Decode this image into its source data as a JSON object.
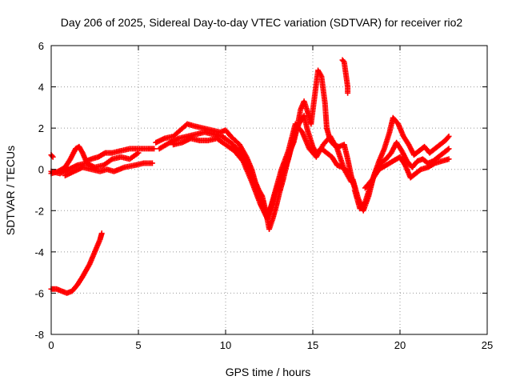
{
  "chart_data": {
    "type": "scatter",
    "title": "Day 206 of 2025, Sidereal Day-to-day VTEC variation (SDTVAR) for receiver rio2",
    "xlabel": "GPS time / hours",
    "ylabel": "SDTVAR / TECUs",
    "xlim": [
      0,
      25
    ],
    "ylim": [
      -8,
      6
    ],
    "xticks": [
      "0",
      "5",
      "10",
      "15",
      "20",
      "25"
    ],
    "yticks": [
      "-8",
      "-6",
      "-4",
      "-2",
      "0",
      "2",
      "4",
      "6"
    ],
    "grid": true,
    "marker": "+",
    "color": "#ff0000",
    "series": [
      {
        "name": "upper-track",
        "points": [
          [
            0.0,
            -0.2
          ],
          [
            0.4,
            -0.1
          ],
          [
            0.8,
            0.1
          ],
          [
            1.1,
            0.5
          ],
          [
            1.4,
            1.0
          ],
          [
            1.6,
            1.1
          ],
          [
            1.8,
            0.8
          ],
          [
            2.0,
            0.4
          ],
          [
            2.3,
            0.5
          ],
          [
            2.7,
            0.6
          ],
          [
            3.1,
            0.8
          ],
          [
            3.5,
            0.8
          ],
          [
            4.0,
            0.9
          ],
          [
            4.5,
            1.0
          ],
          [
            5.0,
            1.0
          ],
          [
            5.5,
            1.0
          ],
          [
            5.9,
            1.0
          ]
        ]
      },
      {
        "name": "middle-track",
        "points": [
          [
            0.0,
            -0.1
          ],
          [
            0.5,
            -0.2
          ],
          [
            1.0,
            0.0
          ],
          [
            1.5,
            0.2
          ],
          [
            2.0,
            0.3
          ],
          [
            2.5,
            0.1
          ],
          [
            3.0,
            0.2
          ],
          [
            3.5,
            0.5
          ],
          [
            4.0,
            0.6
          ],
          [
            4.5,
            0.5
          ],
          [
            5.0,
            0.8
          ]
        ]
      },
      {
        "name": "lower-track",
        "points": [
          [
            0.8,
            -0.3
          ],
          [
            1.3,
            -0.1
          ],
          [
            1.8,
            0.1
          ],
          [
            2.3,
            0.0
          ],
          [
            2.8,
            -0.1
          ],
          [
            3.2,
            0.0
          ],
          [
            3.6,
            -0.1
          ],
          [
            4.2,
            0.1
          ],
          [
            4.8,
            0.2
          ],
          [
            5.3,
            0.3
          ],
          [
            5.8,
            0.3
          ]
        ]
      },
      {
        "name": "start-marks",
        "points": [
          [
            0.0,
            0.7
          ],
          [
            0.1,
            0.6
          ]
        ]
      },
      {
        "name": "day-track-a",
        "points": [
          [
            6.0,
            1.3
          ],
          [
            6.5,
            1.5
          ],
          [
            7.0,
            1.6
          ],
          [
            7.4,
            1.9
          ],
          [
            7.8,
            2.2
          ],
          [
            8.2,
            2.1
          ],
          [
            8.7,
            2.0
          ],
          [
            9.2,
            1.9
          ],
          [
            9.7,
            1.8
          ],
          [
            10.0,
            1.9
          ],
          [
            10.3,
            1.6
          ],
          [
            10.8,
            1.2
          ],
          [
            11.2,
            0.6
          ],
          [
            11.5,
            0.0
          ],
          [
            11.7,
            -0.6
          ],
          [
            11.9,
            -1.0
          ],
          [
            12.1,
            -1.3
          ],
          [
            12.3,
            -2.0
          ],
          [
            12.5,
            -2.9
          ],
          [
            12.7,
            -2.4
          ],
          [
            12.9,
            -1.8
          ],
          [
            13.1,
            -1.1
          ],
          [
            13.3,
            -0.5
          ],
          [
            13.5,
            0.2
          ],
          [
            13.7,
            0.9
          ],
          [
            13.9,
            1.3
          ],
          [
            14.1,
            2.0
          ],
          [
            14.3,
            2.9
          ],
          [
            14.5,
            3.3
          ],
          [
            14.7,
            2.8
          ],
          [
            14.9,
            2.2
          ],
          [
            15.1,
            3.5
          ],
          [
            15.3,
            4.8
          ],
          [
            15.5,
            4.5
          ],
          [
            15.7,
            3.2
          ],
          [
            15.8,
            2.0
          ],
          [
            16.0,
            1.4
          ],
          [
            16.2,
            1.2
          ],
          [
            16.5,
            1.1
          ],
          [
            16.8,
            1.2
          ],
          [
            17.0,
            0.5
          ],
          [
            17.2,
            -0.3
          ],
          [
            17.4,
            -0.9
          ]
        ]
      },
      {
        "name": "day-track-b",
        "points": [
          [
            6.2,
            1.0
          ],
          [
            6.8,
            1.3
          ],
          [
            7.3,
            1.5
          ],
          [
            7.8,
            1.6
          ],
          [
            8.3,
            1.7
          ],
          [
            8.8,
            1.8
          ],
          [
            9.3,
            1.7
          ],
          [
            9.8,
            1.6
          ],
          [
            10.3,
            1.3
          ],
          [
            10.8,
            0.9
          ],
          [
            11.2,
            0.3
          ],
          [
            11.6,
            -0.5
          ],
          [
            12.0,
            -1.3
          ],
          [
            12.4,
            -2.3
          ],
          [
            12.7,
            -1.6
          ],
          [
            13.0,
            -0.8
          ],
          [
            13.3,
            -0.2
          ],
          [
            13.6,
            0.5
          ],
          [
            13.9,
            1.5
          ],
          [
            14.2,
            2.2
          ],
          [
            14.5,
            2.6
          ],
          [
            14.7,
            1.9
          ],
          [
            15.0,
            1.1
          ],
          [
            15.2,
            0.8
          ],
          [
            15.5,
            1.0
          ],
          [
            15.8,
            0.8
          ],
          [
            16.1,
            0.6
          ],
          [
            16.4,
            0.2
          ],
          [
            16.7,
            0.1
          ],
          [
            17.0,
            -0.1
          ]
        ]
      },
      {
        "name": "day-track-c",
        "points": [
          [
            7.0,
            1.2
          ],
          [
            7.5,
            1.3
          ],
          [
            8.0,
            1.5
          ],
          [
            8.5,
            1.4
          ],
          [
            9.0,
            1.4
          ],
          [
            9.5,
            1.5
          ],
          [
            10.0,
            1.2
          ],
          [
            10.5,
            0.9
          ],
          [
            11.0,
            0.4
          ],
          [
            11.5,
            -0.6
          ],
          [
            12.0,
            -1.7
          ],
          [
            12.4,
            -2.4
          ],
          [
            12.8,
            -1.2
          ],
          [
            13.2,
            0.0
          ],
          [
            13.6,
            0.9
          ],
          [
            14.0,
            2.2
          ],
          [
            14.4,
            1.8
          ],
          [
            14.8,
            1.0
          ],
          [
            15.2,
            0.6
          ],
          [
            15.6,
            1.2
          ],
          [
            16.0,
            1.6
          ],
          [
            16.4,
            1.0
          ],
          [
            16.8,
            0.0
          ],
          [
            17.2,
            -0.6
          ]
        ]
      },
      {
        "name": "spike-5pm",
        "points": [
          [
            16.7,
            5.3
          ],
          [
            16.8,
            5.2
          ],
          [
            16.9,
            4.6
          ],
          [
            17.0,
            4.0
          ],
          [
            17.0,
            3.7
          ]
        ]
      },
      {
        "name": "evening-track-a",
        "points": [
          [
            17.3,
            -0.5
          ],
          [
            17.6,
            -1.4
          ],
          [
            17.9,
            -2.0
          ],
          [
            18.2,
            -1.3
          ],
          [
            18.5,
            -0.3
          ],
          [
            18.8,
            0.4
          ],
          [
            19.1,
            1.0
          ],
          [
            19.4,
            1.8
          ],
          [
            19.6,
            2.5
          ],
          [
            19.9,
            2.2
          ],
          [
            20.2,
            1.6
          ],
          [
            20.5,
            1.2
          ],
          [
            20.8,
            0.7
          ],
          [
            21.1,
            0.9
          ],
          [
            21.4,
            1.1
          ],
          [
            21.7,
            0.8
          ],
          [
            22.0,
            1.0
          ],
          [
            22.3,
            1.2
          ],
          [
            22.6,
            1.4
          ],
          [
            22.8,
            1.6
          ]
        ]
      },
      {
        "name": "evening-track-b",
        "points": [
          [
            17.4,
            -1.0
          ],
          [
            17.7,
            -1.9
          ],
          [
            18.0,
            -1.6
          ],
          [
            18.3,
            -0.8
          ],
          [
            18.6,
            -0.1
          ],
          [
            18.9,
            0.3
          ],
          [
            19.2,
            0.5
          ],
          [
            19.5,
            0.8
          ],
          [
            19.8,
            1.3
          ],
          [
            20.1,
            0.9
          ],
          [
            20.4,
            0.4
          ],
          [
            20.7,
            0.1
          ],
          [
            21.0,
            0.4
          ],
          [
            21.3,
            0.5
          ],
          [
            21.6,
            0.3
          ],
          [
            21.9,
            0.4
          ],
          [
            22.2,
            0.6
          ],
          [
            22.5,
            0.8
          ],
          [
            22.8,
            1.0
          ]
        ]
      },
      {
        "name": "evening-track-c",
        "points": [
          [
            18.0,
            -0.9
          ],
          [
            18.4,
            -0.5
          ],
          [
            18.8,
            0.0
          ],
          [
            19.2,
            0.2
          ],
          [
            19.6,
            0.4
          ],
          [
            20.0,
            0.6
          ],
          [
            20.3,
            0.2
          ],
          [
            20.6,
            -0.4
          ],
          [
            20.9,
            -0.2
          ],
          [
            21.2,
            0.0
          ],
          [
            21.6,
            0.1
          ],
          [
            22.0,
            0.3
          ],
          [
            22.4,
            0.4
          ],
          [
            22.8,
            0.5
          ]
        ]
      },
      {
        "name": "early-low-track",
        "points": [
          [
            0.0,
            -5.8
          ],
          [
            0.3,
            -5.8
          ],
          [
            0.6,
            -5.9
          ],
          [
            0.9,
            -6.0
          ],
          [
            1.2,
            -5.9
          ],
          [
            1.5,
            -5.6
          ],
          [
            1.8,
            -5.2
          ],
          [
            2.0,
            -4.9
          ],
          [
            2.2,
            -4.6
          ],
          [
            2.4,
            -4.2
          ],
          [
            2.6,
            -3.8
          ],
          [
            2.8,
            -3.4
          ],
          [
            2.9,
            -3.1
          ]
        ]
      }
    ]
  }
}
